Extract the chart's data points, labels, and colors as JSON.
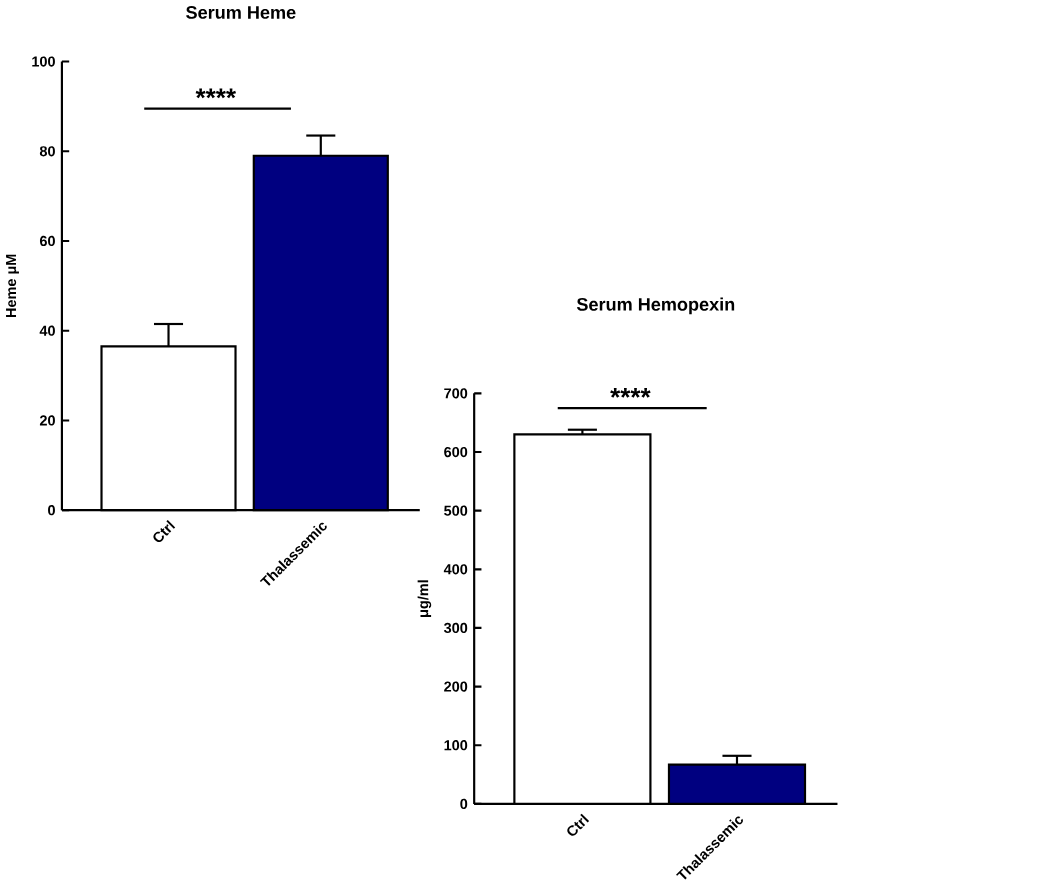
{
  "chart_data": [
    {
      "type": "bar",
      "title": "Serum Heme",
      "ylabel": "Heme μM",
      "categories": [
        "Ctrl",
        "Thalassemic"
      ],
      "values": [
        36.5,
        79
      ],
      "colors": [
        "#ffffff",
        "#000080"
      ],
      "errors": [
        [
          36.5,
          41.5
        ],
        [
          79,
          83.5
        ]
      ],
      "ylim": [
        0,
        100
      ],
      "yticks": [
        0,
        20,
        40,
        60,
        80,
        100
      ],
      "annotations": [
        "****"
      ]
    },
    {
      "type": "bar",
      "title": "Serum Hemopexin",
      "ylabel": "μg/ml",
      "categories": [
        "Ctrl",
        "Thalassemic"
      ],
      "values": [
        630,
        67
      ],
      "colors": [
        "#ffffff",
        "#000080"
      ],
      "errors": [
        [
          630,
          638
        ],
        [
          67,
          82
        ]
      ],
      "ylim": [
        0,
        700
      ],
      "yticks": [
        0,
        100,
        200,
        300,
        400,
        500,
        600,
        700
      ],
      "annotations": [
        "****"
      ]
    }
  ]
}
